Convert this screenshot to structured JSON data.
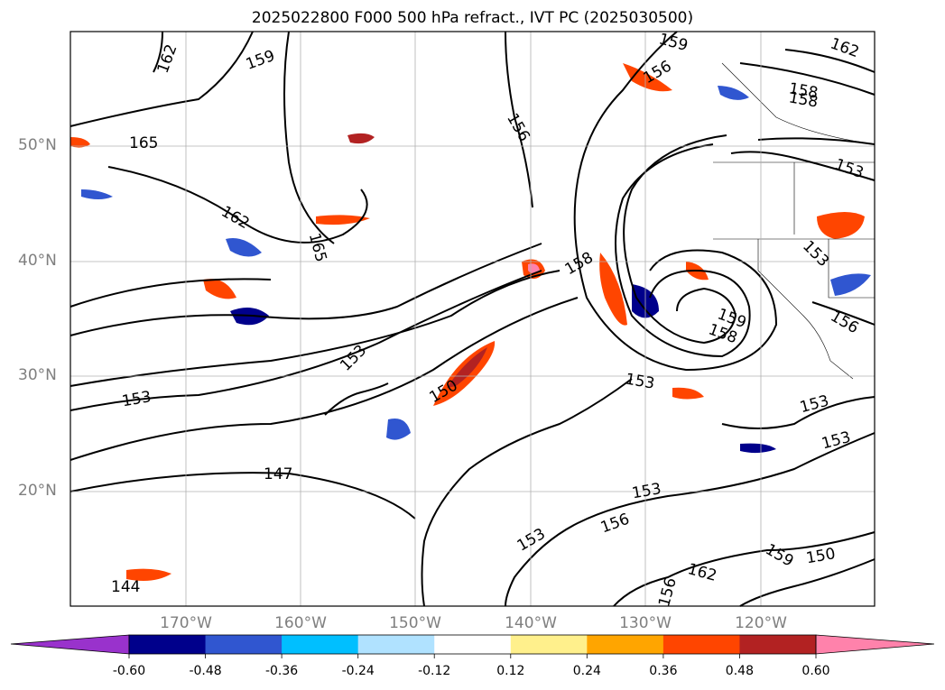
{
  "title": "2025022800 F000 500 hPa refract., IVT PC (2025030500)",
  "lat_labels": [
    "50°N",
    "40°N",
    "30°N",
    "20°N"
  ],
  "lon_labels": [
    "170°W",
    "160°W",
    "150°W",
    "140°W",
    "130°W",
    "120°W"
  ],
  "contour_labels": [
    "162",
    "159",
    "159",
    "162",
    "156",
    "158",
    "158",
    "165",
    "162",
    "165",
    "156",
    "153",
    "158",
    "153",
    "156",
    "159",
    "158",
    "153",
    "153",
    "153",
    "153",
    "153",
    "150",
    "147",
    "144",
    "153",
    "156",
    "153",
    "159",
    "162",
    "150",
    "156"
  ],
  "colorbar": {
    "ticks": [
      "-0.60",
      "-0.48",
      "-0.36",
      "-0.24",
      "-0.12",
      "0.12",
      "0.24",
      "0.36",
      "0.48",
      "0.60"
    ],
    "under_color": "#9932cc",
    "over_color": "#ff82ab",
    "colors": [
      "#00008b",
      "#3056d0",
      "#00bfff",
      "#b0e2ff",
      "#ffffff",
      "#fff08c",
      "#ffa500",
      "#ff4500",
      "#b22222"
    ]
  }
}
